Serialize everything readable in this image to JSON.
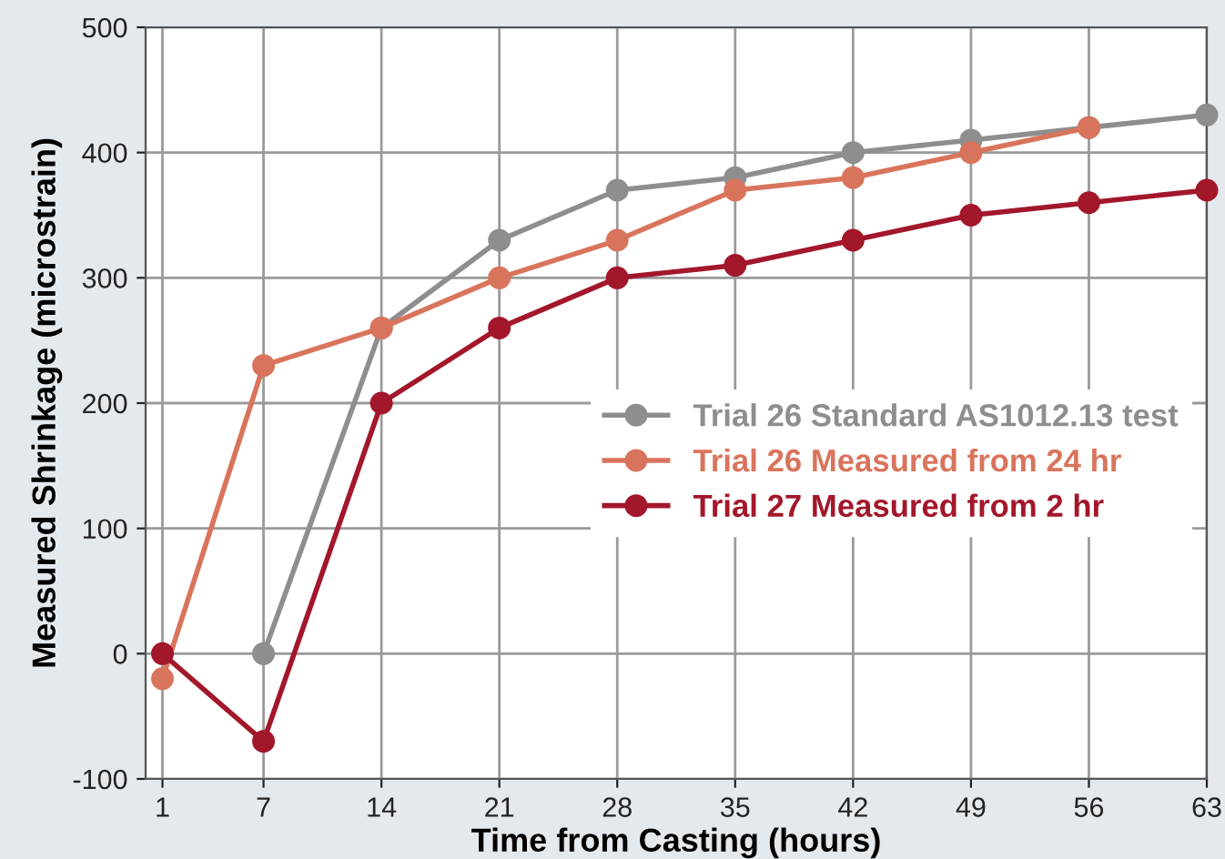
{
  "chart_data": {
    "type": "line",
    "xlabel": "Time from Casting (hours)",
    "ylabel": "Measured Shrinkage (microstrain)",
    "series": [
      {
        "name": "Trial 26 Standard AS1012.13 test",
        "color": "#8e8e8e",
        "x": [
          7,
          14,
          21,
          28,
          35,
          42,
          49,
          56,
          63
        ],
        "values": [
          0,
          260,
          330,
          370,
          380,
          400,
          410,
          420,
          430
        ]
      },
      {
        "name": "Trial 26 Measured from 24 hr",
        "color": "#d9745c",
        "x": [
          1,
          7,
          14,
          21,
          28,
          35,
          42,
          49,
          56
        ],
        "values": [
          -20,
          230,
          260,
          300,
          330,
          370,
          380,
          400,
          420
        ]
      },
      {
        "name": "Trial 27 Measured from 2 hr",
        "color": "#a3172b",
        "x": [
          1,
          7,
          14,
          21,
          28,
          35,
          42,
          49,
          56,
          63
        ],
        "values": [
          0,
          -70,
          200,
          260,
          300,
          310,
          330,
          350,
          360,
          370
        ]
      }
    ],
    "xlim": [
      0,
      63
    ],
    "xticks": [
      1,
      7,
      14,
      21,
      28,
      35,
      42,
      49,
      56,
      63
    ],
    "ylim": [
      -100,
      500
    ],
    "yticks": [
      -100,
      0,
      100,
      200,
      300,
      400,
      500
    ],
    "grid": true,
    "legend": "right",
    "marker": "circle",
    "line_style": "solid"
  }
}
